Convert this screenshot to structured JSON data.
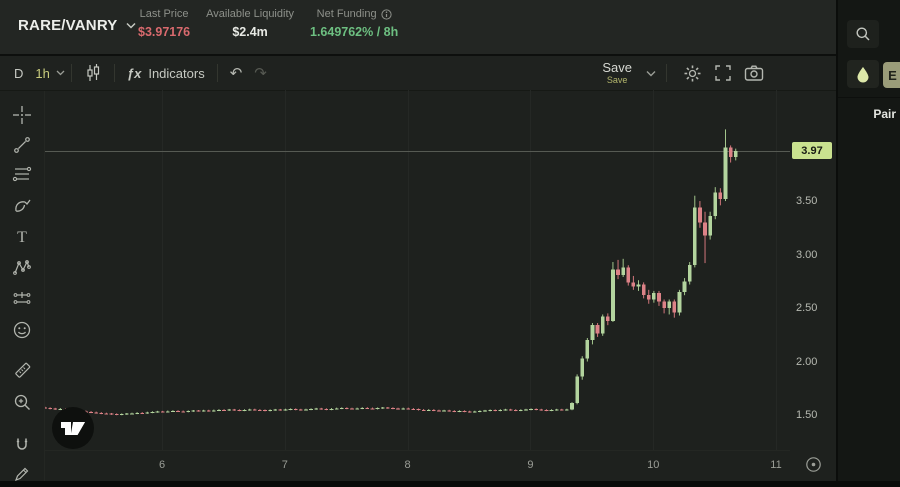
{
  "header": {
    "pair": "RARE/VANRY",
    "stats": [
      {
        "label": "Last Price",
        "value": "$3.97176",
        "color": "#d96a6e"
      },
      {
        "label": "Available Liquidity",
        "value": "$2.4m",
        "color": "#e8eae5"
      },
      {
        "label": "Net Funding",
        "value": "1.649762% / 8h",
        "color": "#6dbf81"
      }
    ]
  },
  "toolbar": {
    "timeframe_daily": "D",
    "timeframe_active": "1h",
    "fx": "ƒx",
    "indicators_label": "Indicators",
    "undo": "↶",
    "redo": "↷",
    "save_label": "Save",
    "save_sub_label": "Save"
  },
  "left_toolbar_icons": [
    "crosshair",
    "trend-line",
    "fib-retracement",
    "brush",
    "text",
    "xabcd-pattern",
    "projection",
    "emoji",
    "ruler",
    "zoom-in",
    "magnet",
    "edit-pencil"
  ],
  "header_icons": [
    "chevron-down-icon",
    "info-icon"
  ],
  "toolbar_icons": [
    "candlestick-icon",
    "fx-icon",
    "undo-icon",
    "redo-icon",
    "chevron-down-icon",
    "gear-icon",
    "fullscreen-icon",
    "camera-icon"
  ],
  "sidebar": {
    "search_icon": "search-icon",
    "droplet_icon": "droplet-icon",
    "partial_button_label": "E",
    "pair_label": "Pair"
  },
  "watermark": "tradingview-logo",
  "chart_data": {
    "type": "candlestick",
    "symbol": "RARE/VANRY",
    "interval": "1h",
    "last_price": 3.97176,
    "last_price_label": "3.97",
    "price_line": 3.97,
    "xlim_days": [
      5.047,
      11.114
    ],
    "ylim": [
      1.173,
      4.538
    ],
    "start_day": 5.047,
    "interval_days": 0.0416667,
    "x_ticks": [
      {
        "label": "6",
        "day": 6
      },
      {
        "label": "7",
        "day": 7
      },
      {
        "label": "8",
        "day": 8
      },
      {
        "label": "9",
        "day": 9
      },
      {
        "label": "10",
        "day": 10
      },
      {
        "label": "11",
        "day": 11
      }
    ],
    "y_ticks": [
      {
        "label": "1.50",
        "price": 1.5
      },
      {
        "label": "2.00",
        "price": 2.0
      },
      {
        "label": "2.50",
        "price": 2.5
      },
      {
        "label": "3.00",
        "price": 3.0
      },
      {
        "label": "3.50",
        "price": 3.5
      }
    ],
    "colors": {
      "up": "#b3d49e",
      "down": "#dc8287",
      "wick_up": "#a3c68c",
      "wick_down": "#d3767c",
      "grid": "#252825",
      "price_line": "#565a53",
      "badge_bg": "#c9e18f",
      "badge_text": "#181b14"
    },
    "candles": [
      [
        1.57,
        1.577,
        1.558,
        1.565
      ],
      [
        1.565,
        1.572,
        1.553,
        1.56
      ],
      [
        1.56,
        1.567,
        1.548,
        1.555
      ],
      [
        1.555,
        1.565,
        1.548,
        1.558
      ],
      [
        1.558,
        1.565,
        1.543,
        1.55
      ],
      [
        1.55,
        1.557,
        1.538,
        1.545
      ],
      [
        1.545,
        1.552,
        1.533,
        1.54
      ],
      [
        1.54,
        1.547,
        1.528,
        1.535
      ],
      [
        1.535,
        1.542,
        1.523,
        1.53
      ],
      [
        1.53,
        1.537,
        1.518,
        1.525
      ],
      [
        1.525,
        1.532,
        1.513,
        1.52
      ],
      [
        1.52,
        1.527,
        1.508,
        1.515
      ],
      [
        1.515,
        1.522,
        1.505,
        1.512
      ],
      [
        1.512,
        1.519,
        1.501,
        1.508
      ],
      [
        1.508,
        1.515,
        1.498,
        1.505
      ],
      [
        1.505,
        1.515,
        1.498,
        1.508
      ],
      [
        1.508,
        1.519,
        1.501,
        1.512
      ],
      [
        1.512,
        1.522,
        1.505,
        1.515
      ],
      [
        1.515,
        1.527,
        1.508,
        1.52
      ],
      [
        1.52,
        1.527,
        1.511,
        1.518
      ],
      [
        1.518,
        1.531,
        1.511,
        1.524
      ],
      [
        1.524,
        1.535,
        1.517,
        1.528
      ],
      [
        1.528,
        1.539,
        1.521,
        1.532
      ],
      [
        1.532,
        1.539,
        1.523,
        1.53
      ],
      [
        1.53,
        1.542,
        1.523,
        1.535
      ],
      [
        1.535,
        1.545,
        1.528,
        1.538
      ],
      [
        1.538,
        1.545,
        1.528,
        1.535
      ],
      [
        1.535,
        1.542,
        1.525,
        1.532
      ],
      [
        1.532,
        1.543,
        1.525,
        1.536
      ],
      [
        1.536,
        1.547,
        1.529,
        1.54
      ],
      [
        1.54,
        1.547,
        1.531,
        1.538
      ],
      [
        1.538,
        1.549,
        1.531,
        1.542
      ],
      [
        1.542,
        1.549,
        1.531,
        1.538
      ],
      [
        1.538,
        1.551,
        1.531,
        1.544
      ],
      [
        1.544,
        1.555,
        1.537,
        1.548
      ],
      [
        1.548,
        1.555,
        1.538,
        1.545
      ],
      [
        1.545,
        1.557,
        1.538,
        1.55
      ],
      [
        1.55,
        1.557,
        1.539,
        1.546
      ],
      [
        1.546,
        1.553,
        1.536,
        1.543
      ],
      [
        1.543,
        1.554,
        1.536,
        1.547
      ],
      [
        1.547,
        1.559,
        1.54,
        1.552
      ],
      [
        1.552,
        1.559,
        1.541,
        1.548
      ],
      [
        1.548,
        1.555,
        1.538,
        1.545
      ],
      [
        1.545,
        1.552,
        1.534,
        1.541
      ],
      [
        1.541,
        1.553,
        1.534,
        1.546
      ],
      [
        1.546,
        1.557,
        1.539,
        1.55
      ],
      [
        1.55,
        1.557,
        1.54,
        1.547
      ],
      [
        1.547,
        1.559,
        1.54,
        1.552
      ],
      [
        1.552,
        1.562,
        1.545,
        1.555
      ],
      [
        1.555,
        1.562,
        1.544,
        1.551
      ],
      [
        1.551,
        1.558,
        1.541,
        1.548
      ],
      [
        1.548,
        1.559,
        1.541,
        1.552
      ],
      [
        1.552,
        1.563,
        1.545,
        1.556
      ],
      [
        1.556,
        1.567,
        1.549,
        1.56
      ],
      [
        1.56,
        1.567,
        1.549,
        1.556
      ],
      [
        1.556,
        1.563,
        1.545,
        1.552
      ],
      [
        1.552,
        1.565,
        1.545,
        1.558
      ],
      [
        1.558,
        1.569,
        1.551,
        1.562
      ],
      [
        1.562,
        1.572,
        1.555,
        1.565
      ],
      [
        1.565,
        1.572,
        1.554,
        1.561
      ],
      [
        1.561,
        1.568,
        1.551,
        1.558
      ],
      [
        1.558,
        1.569,
        1.551,
        1.562
      ],
      [
        1.562,
        1.573,
        1.555,
        1.566
      ],
      [
        1.566,
        1.573,
        1.556,
        1.563
      ],
      [
        1.563,
        1.57,
        1.552,
        1.559
      ],
      [
        1.559,
        1.571,
        1.552,
        1.564
      ],
      [
        1.564,
        1.575,
        1.557,
        1.568
      ],
      [
        1.568,
        1.575,
        1.558,
        1.565
      ],
      [
        1.565,
        1.572,
        1.554,
        1.561
      ],
      [
        1.561,
        1.568,
        1.55,
        1.557
      ],
      [
        1.557,
        1.569,
        1.55,
        1.562
      ],
      [
        1.562,
        1.569,
        1.551,
        1.558
      ],
      [
        1.558,
        1.565,
        1.547,
        1.554
      ],
      [
        1.554,
        1.561,
        1.542,
        1.549
      ],
      [
        1.549,
        1.556,
        1.538,
        1.545
      ],
      [
        1.545,
        1.555,
        1.538,
        1.548
      ],
      [
        1.548,
        1.555,
        1.536,
        1.543
      ],
      [
        1.543,
        1.55,
        1.532,
        1.539
      ],
      [
        1.539,
        1.549,
        1.532,
        1.542
      ],
      [
        1.542,
        1.549,
        1.531,
        1.538
      ],
      [
        1.538,
        1.545,
        1.527,
        1.534
      ],
      [
        1.534,
        1.544,
        1.527,
        1.537
      ],
      [
        1.537,
        1.544,
        1.526,
        1.533
      ],
      [
        1.533,
        1.54,
        1.522,
        1.529
      ],
      [
        1.529,
        1.54,
        1.522,
        1.533
      ],
      [
        1.533,
        1.544,
        1.526,
        1.537
      ],
      [
        1.537,
        1.548,
        1.53,
        1.541
      ],
      [
        1.541,
        1.552,
        1.534,
        1.545
      ],
      [
        1.545,
        1.552,
        1.535,
        1.542
      ],
      [
        1.542,
        1.554,
        1.535,
        1.547
      ],
      [
        1.547,
        1.558,
        1.54,
        1.551
      ],
      [
        1.551,
        1.558,
        1.54,
        1.547
      ],
      [
        1.547,
        1.554,
        1.536,
        1.543
      ],
      [
        1.543,
        1.554,
        1.536,
        1.547
      ],
      [
        1.547,
        1.558,
        1.54,
        1.551
      ],
      [
        1.551,
        1.562,
        1.544,
        1.555
      ],
      [
        1.555,
        1.562,
        1.544,
        1.551
      ],
      [
        1.551,
        1.558,
        1.54,
        1.547
      ],
      [
        1.547,
        1.554,
        1.536,
        1.543
      ],
      [
        1.543,
        1.554,
        1.536,
        1.547
      ],
      [
        1.547,
        1.558,
        1.54,
        1.551
      ],
      [
        1.551,
        1.558,
        1.541,
        1.548
      ],
      [
        1.548,
        1.559,
        1.541,
        1.552
      ],
      [
        1.552,
        1.62,
        1.545,
        1.61
      ],
      [
        1.61,
        1.88,
        1.6,
        1.86
      ],
      [
        1.86,
        2.05,
        1.83,
        2.03
      ],
      [
        2.03,
        2.22,
        2.0,
        2.2
      ],
      [
        2.2,
        2.36,
        2.16,
        2.34
      ],
      [
        2.34,
        2.36,
        2.23,
        2.26
      ],
      [
        2.26,
        2.44,
        2.24,
        2.42
      ],
      [
        2.42,
        2.45,
        2.34,
        2.38
      ],
      [
        2.38,
        2.93,
        2.37,
        2.86
      ],
      [
        2.86,
        2.95,
        2.77,
        2.81
      ],
      [
        2.81,
        2.96,
        2.79,
        2.88
      ],
      [
        2.88,
        2.9,
        2.71,
        2.74
      ],
      [
        2.74,
        2.8,
        2.67,
        2.7
      ],
      [
        2.7,
        2.76,
        2.66,
        2.72
      ],
      [
        2.72,
        2.74,
        2.59,
        2.62
      ],
      [
        2.62,
        2.67,
        2.54,
        2.58
      ],
      [
        2.58,
        2.66,
        2.55,
        2.64
      ],
      [
        2.64,
        2.66,
        2.52,
        2.56
      ],
      [
        2.56,
        2.58,
        2.45,
        2.5
      ],
      [
        2.5,
        2.58,
        2.44,
        2.56
      ],
      [
        2.56,
        2.58,
        2.41,
        2.46
      ],
      [
        2.46,
        2.67,
        2.43,
        2.65
      ],
      [
        2.65,
        2.78,
        2.62,
        2.75
      ],
      [
        2.75,
        2.93,
        2.72,
        2.9
      ],
      [
        2.9,
        3.55,
        2.88,
        3.44
      ],
      [
        3.44,
        3.5,
        3.25,
        3.3
      ],
      [
        3.3,
        3.4,
        2.92,
        3.18
      ],
      [
        3.18,
        3.4,
        3.14,
        3.36
      ],
      [
        3.36,
        3.63,
        3.33,
        3.58
      ],
      [
        3.58,
        3.62,
        3.46,
        3.52
      ],
      [
        3.52,
        4.17,
        3.5,
        4.0
      ],
      [
        4.0,
        4.02,
        3.86,
        3.91
      ],
      [
        3.91,
        3.99,
        3.88,
        3.97
      ]
    ]
  }
}
